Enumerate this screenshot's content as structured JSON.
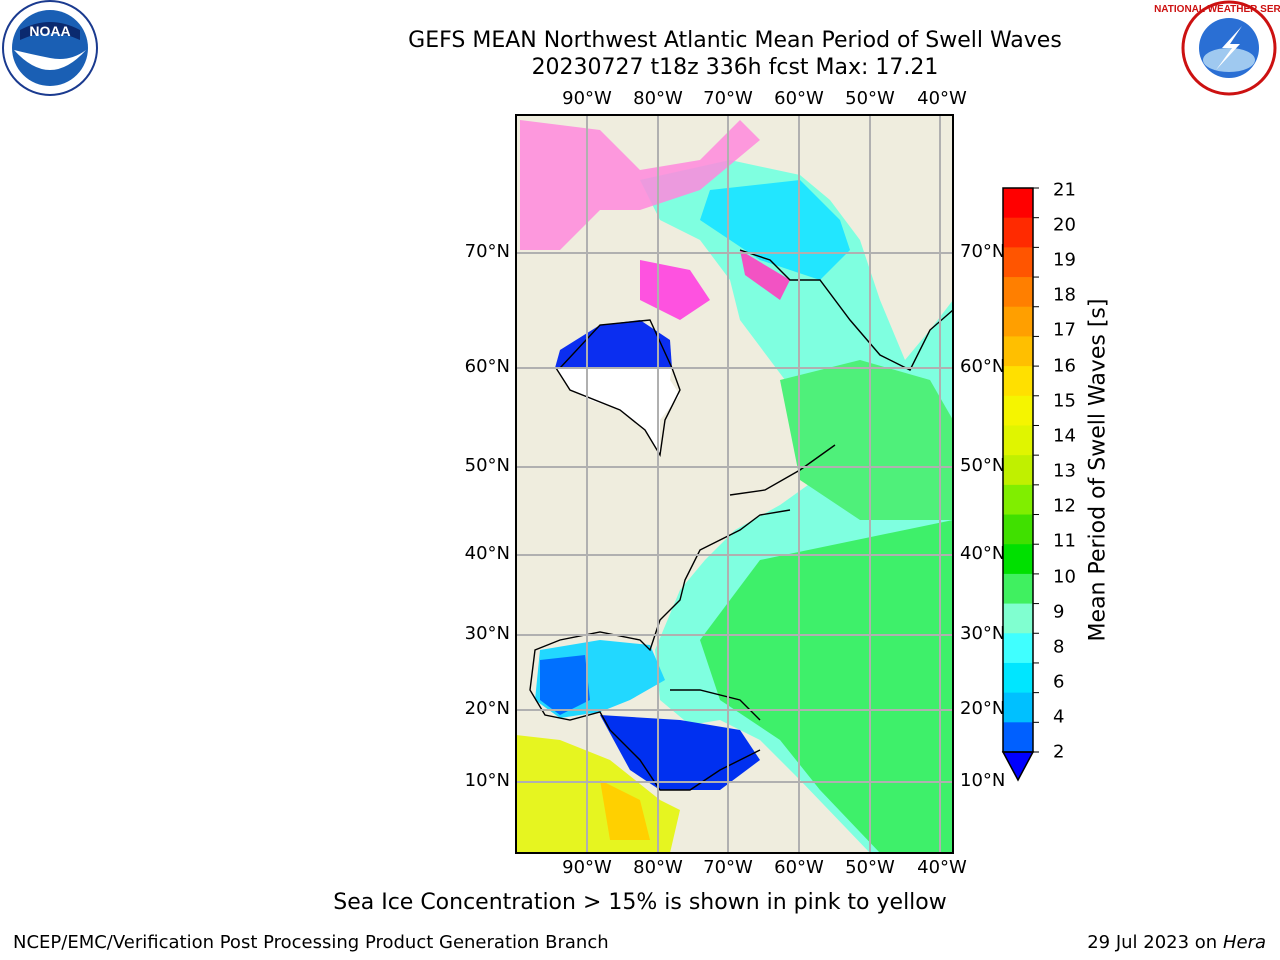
{
  "header": {
    "title": "GEFS MEAN Northwest Atlantic Mean Period of Swell Waves",
    "subtitle": "20230727 t18z 336h fcst   Max: 17.21"
  },
  "logos": {
    "left": {
      "icon": "noaa-logo",
      "text": "NOAA"
    },
    "right": {
      "icon": "nws-logo",
      "text": "NATIONAL WEATHER SERVICE"
    }
  },
  "map": {
    "lon_labels": [
      "90°W",
      "80°W",
      "70°W",
      "60°W",
      "50°W",
      "40°W"
    ],
    "lat_labels": [
      "70°N",
      "60°N",
      "50°N",
      "40°N",
      "30°N",
      "20°N",
      "10°N"
    ]
  },
  "colorbar": {
    "label": "Mean Period of Swell Waves [s]",
    "ticks": [
      "21",
      "20",
      "19",
      "18",
      "17",
      "16",
      "15",
      "14",
      "13",
      "12",
      "11",
      "10",
      "9",
      "8",
      "6",
      "4",
      "2"
    ],
    "colors": [
      "#ff0000",
      "#ff2a00",
      "#ff5500",
      "#ff7f00",
      "#ff9f00",
      "#ffbf00",
      "#ffe000",
      "#f5f500",
      "#e0f500",
      "#c0f000",
      "#80ee00",
      "#40e000",
      "#00e000",
      "#40f060",
      "#80ffd0",
      "#40ffff",
      "#00e6ff",
      "#00c0ff",
      "#0060ff"
    ],
    "extend_color": "#0000ff"
  },
  "caption": "Sea Ice Concentration > 15% is shown in pink to yellow",
  "footer": {
    "left": "NCEP/EMC/Verification Post Processing Product Generation Branch",
    "right_date": "29 Jul 2023 on ",
    "right_host": "Hera"
  }
}
